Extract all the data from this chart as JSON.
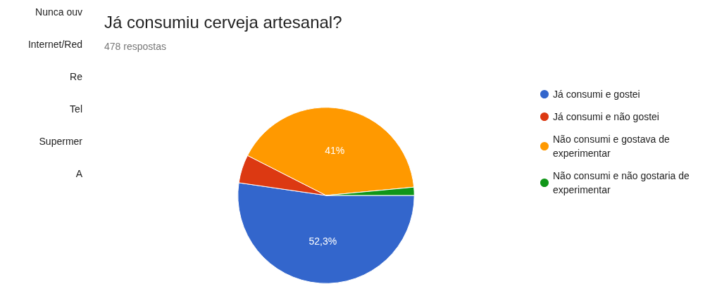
{
  "chart_data": {
    "type": "pie",
    "title": "Já consumiu cerveja artesanal?",
    "subtitle": "478 respostas",
    "categories": [
      "Já consumi e gostei",
      "Já consumi e não gostei",
      "Não consumi e gostava de experimentar",
      "Não consumi e não gostaria de experimentar"
    ],
    "values": [
      52.3,
      5.2,
      41,
      1.5
    ],
    "colors": [
      "#3366cc",
      "#dc3912",
      "#ff9900",
      "#109618"
    ],
    "value_labels": [
      "52,3%",
      null,
      "41%",
      null
    ],
    "legend": "right",
    "annotations": [
      "Nunca ouv",
      "Internet/Red",
      "Re",
      "Tel",
      "Supermer",
      "A"
    ]
  }
}
